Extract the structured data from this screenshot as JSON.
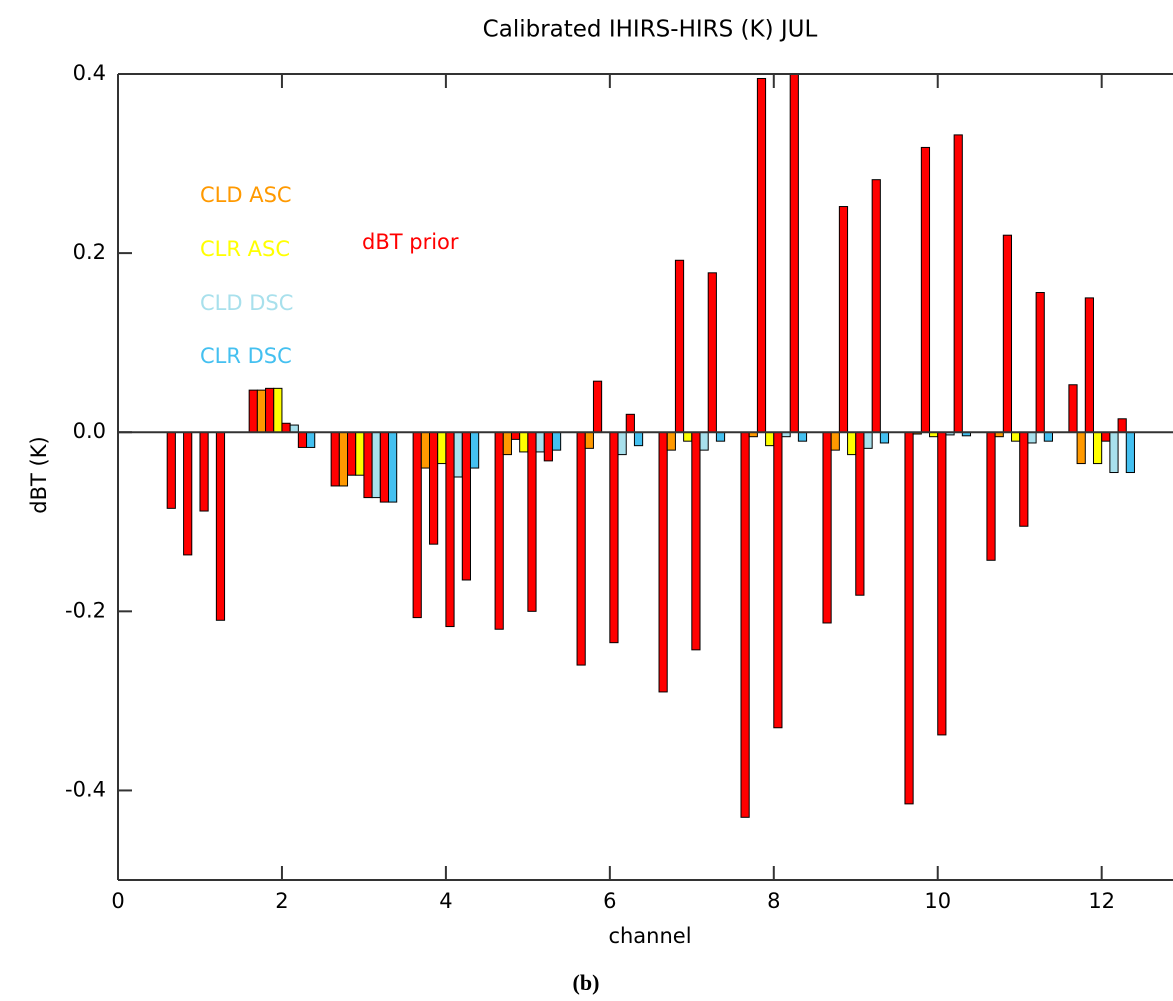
{
  "chart_data": {
    "type": "grouped-bar",
    "title": "Calibrated IHIRS-HIRS (K) JUL",
    "x_label": "channel",
    "y_label": "dBT (K)",
    "caption": "(b)",
    "x": [
      1,
      2,
      3,
      4,
      5,
      6,
      7,
      8,
      9,
      10,
      11,
      12
    ],
    "xlim": [
      0,
      12.87
    ],
    "xticks": [
      0,
      2,
      4,
      6,
      8,
      10,
      12
    ],
    "ylim": [
      -0.5,
      0.4
    ],
    "yticks": [
      -0.4,
      -0.2,
      {
        "value": 0,
        "label": "0.0"
      },
      0.2,
      0.4
    ],
    "series": [
      {
        "name": "CLD ASC",
        "color": "#ff9900",
        "values": [
          0,
          0.047,
          -0.06,
          -0.04,
          -0.025,
          -0.018,
          -0.02,
          -0.005,
          -0.02,
          -0.002,
          -0.005,
          -0.035
        ]
      },
      {
        "name": "CLR ASC",
        "color": "#ffff00",
        "values": [
          0,
          0.049,
          -0.048,
          -0.035,
          -0.022,
          0,
          -0.01,
          -0.015,
          -0.025,
          -0.005,
          -0.01,
          -0.035
        ]
      },
      {
        "name": "CLD DSC",
        "color": "#a8e0ec",
        "values": [
          0,
          0.008,
          -0.073,
          -0.05,
          -0.022,
          -0.025,
          -0.02,
          -0.005,
          -0.018,
          -0.003,
          -0.012,
          -0.045
        ]
      },
      {
        "name": "CLR DSC",
        "color": "#44c0f0",
        "values": [
          0,
          -0.017,
          -0.078,
          -0.04,
          -0.02,
          -0.015,
          -0.01,
          -0.01,
          -0.012,
          -0.004,
          -0.01,
          -0.045
        ]
      },
      {
        "name": "dBT prior",
        "color": "#ff0000",
        "values": [
          [
            -0.085,
            -0.137,
            -0.088,
            -0.21
          ],
          [
            0.047,
            0.049,
            0.01,
            -0.017
          ],
          [
            -0.06,
            -0.048,
            -0.073,
            -0.078
          ],
          [
            -0.207,
            -0.125,
            -0.217,
            -0.165
          ],
          [
            -0.22,
            -0.008,
            -0.2,
            -0.032
          ],
          [
            -0.26,
            0.057,
            -0.235,
            0.02
          ],
          [
            -0.29,
            0.192,
            -0.243,
            0.178
          ],
          [
            -0.43,
            0.395,
            -0.33,
            0.4
          ],
          [
            -0.213,
            0.252,
            -0.182,
            0.282
          ],
          [
            -0.415,
            0.318,
            -0.338,
            0.332
          ],
          [
            -0.143,
            0.22,
            -0.105,
            0.156
          ],
          [
            0.053,
            0.15,
            -0.01,
            0.015
          ]
        ]
      }
    ]
  }
}
